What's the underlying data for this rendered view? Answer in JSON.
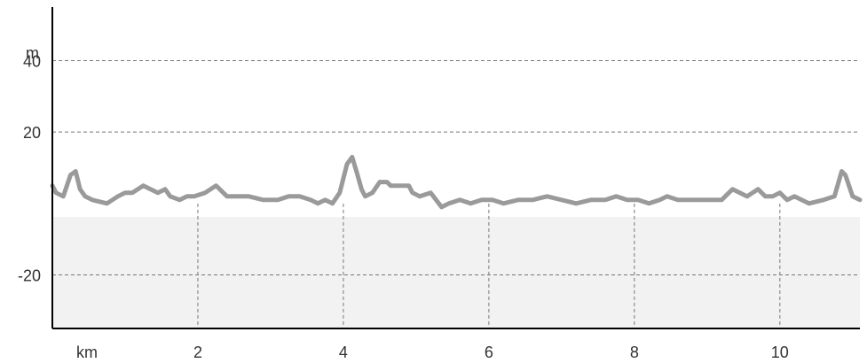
{
  "chart_data": {
    "type": "area",
    "title": "",
    "xlabel": "km",
    "ylabel": "m",
    "xlim": [
      0,
      11.1
    ],
    "ylim": [
      -35,
      55
    ],
    "x_ticks": [
      2,
      4,
      6,
      8,
      10
    ],
    "y_ticks": [
      -20,
      20,
      40
    ],
    "grid": true,
    "colors": {
      "line": "#9a9a9a",
      "fill": "#f2f2f2",
      "grid": "#777777",
      "axis": "#000000"
    },
    "series": [
      {
        "x": [
          0,
          0.05,
          0.15,
          0.25,
          0.32,
          0.38,
          0.45,
          0.55,
          0.75,
          0.9,
          1.0,
          1.1,
          1.25,
          1.35,
          1.45,
          1.55,
          1.62,
          1.75,
          1.85,
          1.95,
          2.1,
          2.25,
          2.4,
          2.55,
          2.7,
          2.9,
          3.1,
          3.25,
          3.4,
          3.55,
          3.65,
          3.75,
          3.85,
          3.95,
          4.05,
          4.12,
          4.18,
          4.25,
          4.3,
          4.4,
          4.5,
          4.6,
          4.65,
          4.9,
          4.95,
          5.05,
          5.2,
          5.35,
          5.45,
          5.6,
          5.75,
          5.9,
          6.05,
          6.2,
          6.4,
          6.6,
          6.8,
          7.0,
          7.2,
          7.4,
          7.6,
          7.75,
          7.9,
          8.05,
          8.2,
          8.35,
          8.45,
          8.6,
          8.8,
          9.0,
          9.2,
          9.3,
          9.35,
          9.45,
          9.55,
          9.7,
          9.8,
          9.9,
          10.0,
          10.1,
          10.2,
          10.3,
          10.4,
          10.6,
          10.75,
          10.85,
          10.9,
          11.0,
          11.1
        ],
        "y": [
          5,
          3,
          2,
          8,
          9,
          4,
          2,
          1,
          0,
          2,
          3,
          3,
          5,
          4,
          3,
          4,
          2,
          1,
          2,
          2,
          3,
          5,
          2,
          2,
          2,
          1,
          1,
          2,
          2,
          1,
          0,
          1,
          0,
          3,
          11,
          13,
          9,
          4,
          2,
          3,
          6,
          6,
          5,
          5,
          3,
          2,
          3,
          -1,
          0,
          1,
          0,
          1,
          1,
          0,
          1,
          1,
          2,
          1,
          0,
          1,
          1,
          2,
          1,
          1,
          0,
          1,
          2,
          1,
          1,
          1,
          1,
          3,
          4,
          3,
          2,
          4,
          2,
          2,
          3,
          1,
          2,
          1,
          0,
          1,
          2,
          9,
          8,
          2,
          1
        ]
      }
    ]
  }
}
